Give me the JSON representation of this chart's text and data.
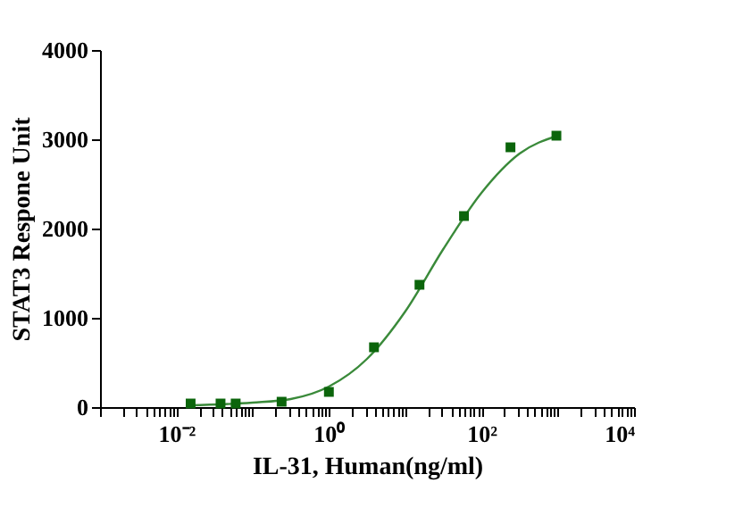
{
  "chart_data": {
    "type": "scatter",
    "xlabel": "IL-31, Human(ng/ml)",
    "ylabel": "STAT3 Respone Unit",
    "log": "x",
    "grid": false,
    "xlim": [
      0.001,
      10000
    ],
    "ylim": [
      0,
      4000
    ],
    "yticks": [
      0,
      1000,
      2000,
      3000,
      4000
    ],
    "xticks": [
      {
        "value": 0.001,
        "label": null
      },
      {
        "value": 0.002,
        "label": null
      },
      {
        "value": 0.003,
        "label": null
      },
      {
        "value": 0.004,
        "label": null
      },
      {
        "value": 0.005,
        "label": null
      },
      {
        "value": 0.006,
        "label": null
      },
      {
        "value": 0.007,
        "label": null
      },
      {
        "value": 0.008,
        "label": null
      },
      {
        "value": 0.009,
        "label": null
      },
      {
        "value": 0.01,
        "label": "10⁻²"
      },
      {
        "value": 0.02,
        "label": null
      },
      {
        "value": 0.03,
        "label": null
      },
      {
        "value": 0.04,
        "label": null
      },
      {
        "value": 0.05,
        "label": null
      },
      {
        "value": 0.06,
        "label": null
      },
      {
        "value": 0.07,
        "label": null
      },
      {
        "value": 0.08,
        "label": null
      },
      {
        "value": 0.09,
        "label": null
      },
      {
        "value": 0.1,
        "label": null
      },
      {
        "value": 0.2,
        "label": null
      },
      {
        "value": 0.3,
        "label": null
      },
      {
        "value": 0.4,
        "label": null
      },
      {
        "value": 0.5,
        "label": null
      },
      {
        "value": 0.6,
        "label": null
      },
      {
        "value": 0.7,
        "label": null
      },
      {
        "value": 0.8,
        "label": null
      },
      {
        "value": 0.9,
        "label": null
      },
      {
        "value": 1,
        "label": "10⁰"
      },
      {
        "value": 2,
        "label": null
      },
      {
        "value": 3,
        "label": null
      },
      {
        "value": 4,
        "label": null
      },
      {
        "value": 5,
        "label": null
      },
      {
        "value": 6,
        "label": null
      },
      {
        "value": 7,
        "label": null
      },
      {
        "value": 8,
        "label": null
      },
      {
        "value": 9,
        "label": null
      },
      {
        "value": 10,
        "label": null
      },
      {
        "value": 20,
        "label": null
      },
      {
        "value": 30,
        "label": null
      },
      {
        "value": 40,
        "label": null
      },
      {
        "value": 50,
        "label": null
      },
      {
        "value": 60,
        "label": null
      },
      {
        "value": 70,
        "label": null
      },
      {
        "value": 80,
        "label": null
      },
      {
        "value": 90,
        "label": null
      },
      {
        "value": 100,
        "label": "10²"
      },
      {
        "value": 200,
        "label": null
      },
      {
        "value": 300,
        "label": null
      },
      {
        "value": 400,
        "label": null
      },
      {
        "value": 500,
        "label": null
      },
      {
        "value": 600,
        "label": null
      },
      {
        "value": 700,
        "label": null
      },
      {
        "value": 800,
        "label": null
      },
      {
        "value": 900,
        "label": null
      },
      {
        "value": 1000,
        "label": null
      },
      {
        "value": 2000,
        "label": null
      },
      {
        "value": 3000,
        "label": null
      },
      {
        "value": 4000,
        "label": null
      },
      {
        "value": 5000,
        "label": null
      },
      {
        "value": 6000,
        "label": null
      },
      {
        "value": 7000,
        "label": null
      },
      {
        "value": 8000,
        "label": null
      },
      {
        "value": 9000,
        "label": null
      },
      {
        "value": 10000,
        "label": "10⁴"
      }
    ],
    "series": [
      {
        "type": "line",
        "color": "#3a8a3a",
        "marker": "none",
        "line_style": "solid",
        "x": [
          0.0145,
          0.1,
          0.316,
          1,
          3.16,
          10,
          31.6,
          100,
          316,
          1000
        ],
        "values": [
          20,
          50,
          90,
          230,
          540,
          1070,
          1770,
          2400,
          2840,
          3040
        ]
      },
      {
        "color": "#0b650b",
        "marker": "square",
        "x": [
          0.0154,
          0.038,
          0.06,
          0.24,
          1,
          3.9,
          15.4,
          59,
          240,
          960
        ],
        "values": [
          40,
          40,
          40,
          60,
          170,
          670,
          1370,
          2140,
          2910,
          3040
        ]
      }
    ]
  }
}
